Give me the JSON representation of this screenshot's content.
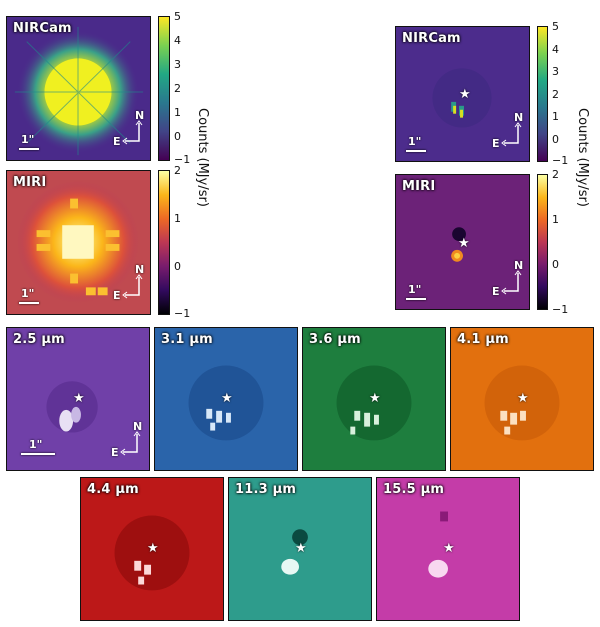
{
  "panels": {
    "nircam_full": {
      "label": "NIRCam",
      "scale": "1\"",
      "north": "N",
      "east": "E"
    },
    "miri_full": {
      "label": "MIRI",
      "scale": "1\"",
      "north": "N",
      "east": "E"
    },
    "nircam_sub": {
      "label": "NIRCam",
      "scale": "1\"",
      "north": "N",
      "east": "E"
    },
    "miri_sub": {
      "label": "MIRI",
      "scale": "1\"",
      "north": "N",
      "east": "E"
    },
    "w25": {
      "label": "2.5 µm",
      "scale": "1\"",
      "north": "N",
      "east": "E"
    },
    "w31": {
      "label": "3.1 µm"
    },
    "w36": {
      "label": "3.6 µm"
    },
    "w41": {
      "label": "4.1 µm"
    },
    "w44": {
      "label": "4.4 µm"
    },
    "w113": {
      "label": "11.3 µm"
    },
    "w155": {
      "label": "15.5 µm"
    }
  },
  "colorbars": {
    "nircam_left": {
      "ticks": [
        "5",
        "4",
        "3",
        "2",
        "1",
        "0",
        "−1"
      ],
      "title": "Counts (MJy/sr)"
    },
    "miri_left": {
      "ticks": [
        "2",
        "1",
        "0",
        "−1"
      ]
    },
    "nircam_right": {
      "ticks": [
        "5",
        "4",
        "3",
        "2",
        "1",
        "0",
        "−1"
      ],
      "title": "Counts (MJy/sr)"
    },
    "miri_right": {
      "ticks": [
        "2",
        "1",
        "0",
        "−1"
      ]
    }
  },
  "colors": {
    "viridis_bg": "#4a2a8a",
    "inferno_bg": "#9a2a6a",
    "purple": "#6a3aa0",
    "blue": "#1f5fa8",
    "green": "#1a7a3a",
    "orange": "#e06a10",
    "red": "#b81414",
    "teal": "#2a9a8a",
    "magenta": "#c83aa8"
  },
  "star_symbol": "★"
}
